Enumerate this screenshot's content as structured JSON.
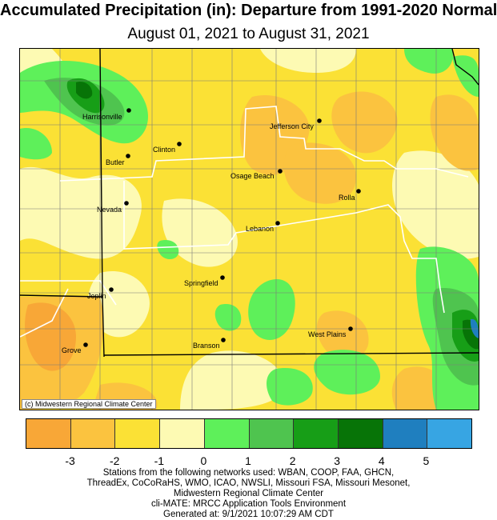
{
  "title": "Accumulated Precipitation (in): Departure from 1991-2020 Normals",
  "subtitle": "August 01, 2021 to August 31, 2021",
  "credit": "(c) Midwestern Regional Climate Center",
  "cities": [
    "Harrisonville",
    "Clinton",
    "Butler",
    "Jefferson City",
    "Osage Beach",
    "Nevada",
    "Rolla",
    "Lebanon",
    "Springfield",
    "Joplin",
    "West Plains",
    "Branson",
    "Grove"
  ],
  "legend": {
    "colors": [
      "#f8a737",
      "#fbc33f",
      "#fbe135",
      "#fdfab3",
      "#5ef05a",
      "#4fc44f",
      "#179e17",
      "#077407",
      "#1f7fbf",
      "#37a5e3"
    ],
    "tick_labels": [
      "-3",
      "-2",
      "-1",
      "0",
      "1",
      "2",
      "3",
      "4",
      "5"
    ]
  },
  "notes": [
    "Stations from the following networks used: WBAN, COOP, FAA, GHCN,",
    "ThreadEx, CoCoRaHS, WMO, ICAO, NWSLI, Missouri FSA, Missouri Mesonet,",
    "Midwestern Regional Climate Center",
    "cli-MATE: MRCC Application Tools Environment",
    "Generated at: 9/1/2021 10:07:29 AM CDT"
  ]
}
